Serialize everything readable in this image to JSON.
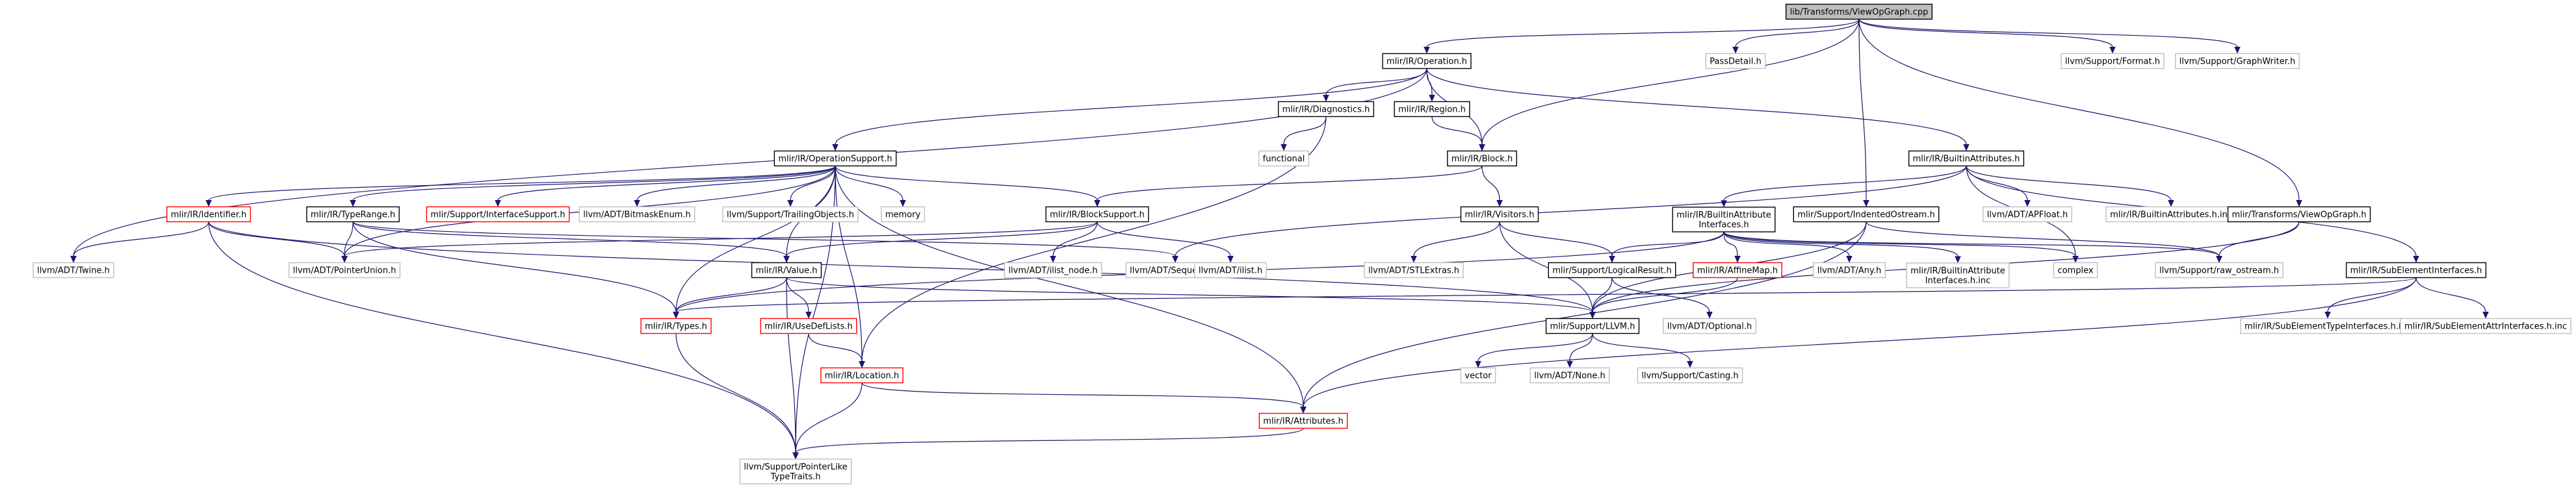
{
  "diagram": {
    "type": "include-dependency-graph",
    "root": "lib/Transforms/ViewOpGraph.cpp",
    "colors": {
      "root_fill": "#bfbfbf",
      "root_border": "#000000",
      "documented_border": "#000000",
      "undocumented_border": "#bfbfbf",
      "truncated_border": "#ff0000",
      "edge": "#191970",
      "node_fill": "#ffffff"
    },
    "nodes": [
      {
        "id": "root",
        "lines": [
          "lib/Transforms/ViewOpGraph.cpp"
        ],
        "kind": "root"
      },
      {
        "id": "operation",
        "lines": [
          "mlir/IR/Operation.h"
        ],
        "kind": "documented"
      },
      {
        "id": "passdetail",
        "lines": [
          "PassDetail.h"
        ],
        "kind": "undocumented"
      },
      {
        "id": "format",
        "lines": [
          "llvm/Support/Format.h"
        ],
        "kind": "undocumented"
      },
      {
        "id": "graphwriter",
        "lines": [
          "llvm/Support/GraphWriter.h"
        ],
        "kind": "undocumented"
      },
      {
        "id": "diagnostics",
        "lines": [
          "mlir/IR/Diagnostics.h"
        ],
        "kind": "documented"
      },
      {
        "id": "region",
        "lines": [
          "mlir/IR/Region.h"
        ],
        "kind": "documented"
      },
      {
        "id": "opsupport",
        "lines": [
          "mlir/IR/OperationSupport.h"
        ],
        "kind": "documented"
      },
      {
        "id": "builtinattrs",
        "lines": [
          "mlir/IR/BuiltinAttributes.h"
        ],
        "kind": "documented"
      },
      {
        "id": "functional",
        "lines": [
          "functional"
        ],
        "kind": "undocumented"
      },
      {
        "id": "block",
        "lines": [
          "mlir/IR/Block.h"
        ],
        "kind": "documented"
      },
      {
        "id": "identifier",
        "lines": [
          "mlir/IR/Identifier.h"
        ],
        "kind": "truncated"
      },
      {
        "id": "typerange",
        "lines": [
          "mlir/IR/TypeRange.h"
        ],
        "kind": "documented"
      },
      {
        "id": "ifacesupport",
        "lines": [
          "mlir/Support/InterfaceSupport.h"
        ],
        "kind": "truncated"
      },
      {
        "id": "bitmaskenum",
        "lines": [
          "llvm/ADT/BitmaskEnum.h"
        ],
        "kind": "undocumented"
      },
      {
        "id": "trailingobj",
        "lines": [
          "llvm/Support/TrailingObjects.h"
        ],
        "kind": "undocumented"
      },
      {
        "id": "memory",
        "lines": [
          "memory"
        ],
        "kind": "undocumented"
      },
      {
        "id": "blocksupport",
        "lines": [
          "mlir/IR/BlockSupport.h"
        ],
        "kind": "documented"
      },
      {
        "id": "visitors",
        "lines": [
          "mlir/IR/Visitors.h"
        ],
        "kind": "documented"
      },
      {
        "id": "builtinattrifaces",
        "lines": [
          "mlir/IR/BuiltinAttribute",
          "Interfaces.h"
        ],
        "kind": "documented"
      },
      {
        "id": "indentedos",
        "lines": [
          "mlir/Support/IndentedOstream.h"
        ],
        "kind": "documented"
      },
      {
        "id": "apfloat",
        "lines": [
          "llvm/ADT/APFloat.h"
        ],
        "kind": "undocumented"
      },
      {
        "id": "builtinattrsinc",
        "lines": [
          "mlir/IR/BuiltinAttributes.h.inc"
        ],
        "kind": "undocumented"
      },
      {
        "id": "viewopgraph",
        "lines": [
          "mlir/Transforms/ViewOpGraph.h"
        ],
        "kind": "documented"
      },
      {
        "id": "twine",
        "lines": [
          "llvm/ADT/Twine.h"
        ],
        "kind": "undocumented"
      },
      {
        "id": "pointerunion",
        "lines": [
          "llvm/ADT/PointerUnion.h"
        ],
        "kind": "undocumented"
      },
      {
        "id": "value",
        "lines": [
          "mlir/IR/Value.h"
        ],
        "kind": "documented"
      },
      {
        "id": "sequence",
        "lines": [
          "llvm/ADT/Sequence.h"
        ],
        "kind": "undocumented"
      },
      {
        "id": "listnode",
        "lines": [
          "llvm/ADT/ilist_node.h"
        ],
        "kind": "undocumented"
      },
      {
        "id": "ilist",
        "lines": [
          "llvm/ADT/ilist.h"
        ],
        "kind": "undocumented"
      },
      {
        "id": "stlextras",
        "lines": [
          "llvm/ADT/STLExtras.h"
        ],
        "kind": "undocumented"
      },
      {
        "id": "logicalresult",
        "lines": [
          "mlir/Support/LogicalResult.h"
        ],
        "kind": "documented"
      },
      {
        "id": "affinemap",
        "lines": [
          "mlir/IR/AffineMap.h"
        ],
        "kind": "truncated"
      },
      {
        "id": "any",
        "lines": [
          "llvm/ADT/Any.h"
        ],
        "kind": "undocumented"
      },
      {
        "id": "builtinattrifacesinc",
        "lines": [
          "mlir/IR/BuiltinAttribute",
          "Interfaces.h.inc"
        ],
        "kind": "undocumented"
      },
      {
        "id": "complex",
        "lines": [
          "complex"
        ],
        "kind": "undocumented"
      },
      {
        "id": "rawostream",
        "lines": [
          "llvm/Support/raw_ostream.h"
        ],
        "kind": "undocumented"
      },
      {
        "id": "subelemifaces",
        "lines": [
          "mlir/IR/SubElementInterfaces.h"
        ],
        "kind": "documented"
      },
      {
        "id": "types",
        "lines": [
          "mlir/IR/Types.h"
        ],
        "kind": "truncated"
      },
      {
        "id": "usedeflists",
        "lines": [
          "mlir/IR/UseDefLists.h"
        ],
        "kind": "truncated"
      },
      {
        "id": "llvmh",
        "lines": [
          "mlir/Support/LLVM.h"
        ],
        "kind": "documented"
      },
      {
        "id": "optional",
        "lines": [
          "llvm/ADT/Optional.h"
        ],
        "kind": "undocumented"
      },
      {
        "id": "subelemtypeinc",
        "lines": [
          "mlir/IR/SubElementTypeInterfaces.h.inc"
        ],
        "kind": "undocumented"
      },
      {
        "id": "subelemattrinc",
        "lines": [
          "mlir/IR/SubElementAttrInterfaces.h.inc"
        ],
        "kind": "undocumented"
      },
      {
        "id": "location",
        "lines": [
          "mlir/IR/Location.h"
        ],
        "kind": "truncated"
      },
      {
        "id": "vector",
        "lines": [
          "vector"
        ],
        "kind": "undocumented"
      },
      {
        "id": "none",
        "lines": [
          "llvm/ADT/None.h"
        ],
        "kind": "undocumented"
      },
      {
        "id": "casting",
        "lines": [
          "llvm/Support/Casting.h"
        ],
        "kind": "undocumented"
      },
      {
        "id": "attributes",
        "lines": [
          "mlir/IR/Attributes.h"
        ],
        "kind": "truncated"
      },
      {
        "id": "pointerlike",
        "lines": [
          "llvm/Support/PointerLike",
          "TypeTraits.h"
        ],
        "kind": "undocumented"
      }
    ],
    "edges": [
      [
        "root",
        "operation"
      ],
      [
        "root",
        "passdetail"
      ],
      [
        "root",
        "format"
      ],
      [
        "root",
        "graphwriter"
      ],
      [
        "root",
        "block"
      ],
      [
        "root",
        "indentedos"
      ],
      [
        "root",
        "viewopgraph"
      ],
      [
        "operation",
        "diagnostics"
      ],
      [
        "operation",
        "region"
      ],
      [
        "operation",
        "opsupport"
      ],
      [
        "operation",
        "builtinattrs"
      ],
      [
        "operation",
        "block"
      ],
      [
        "operation",
        "twine"
      ],
      [
        "diagnostics",
        "functional"
      ],
      [
        "diagnostics",
        "location"
      ],
      [
        "region",
        "block"
      ],
      [
        "block",
        "blocksupport"
      ],
      [
        "block",
        "visitors"
      ],
      [
        "opsupport",
        "identifier"
      ],
      [
        "opsupport",
        "typerange"
      ],
      [
        "opsupport",
        "ifacesupport"
      ],
      [
        "opsupport",
        "bitmaskenum"
      ],
      [
        "opsupport",
        "trailingobj"
      ],
      [
        "opsupport",
        "memory"
      ],
      [
        "opsupport",
        "blocksupport"
      ],
      [
        "opsupport",
        "value"
      ],
      [
        "opsupport",
        "pointerunion"
      ],
      [
        "opsupport",
        "types"
      ],
      [
        "opsupport",
        "location"
      ],
      [
        "opsupport",
        "attributes"
      ],
      [
        "opsupport",
        "pointerlike"
      ],
      [
        "builtinattrs",
        "builtinattrifaces"
      ],
      [
        "builtinattrs",
        "apfloat"
      ],
      [
        "builtinattrs",
        "builtinattrsinc"
      ],
      [
        "builtinattrs",
        "subelemifaces"
      ],
      [
        "builtinattrs",
        "sequence"
      ],
      [
        "builtinattrs",
        "complex"
      ],
      [
        "identifier",
        "twine"
      ],
      [
        "identifier",
        "pointerunion"
      ],
      [
        "identifier",
        "llvmh"
      ],
      [
        "identifier",
        "pointerlike"
      ],
      [
        "typerange",
        "types"
      ],
      [
        "typerange",
        "value"
      ],
      [
        "typerange",
        "sequence"
      ],
      [
        "typerange",
        "pointerunion"
      ],
      [
        "blocksupport",
        "value"
      ],
      [
        "blocksupport",
        "pointerunion"
      ],
      [
        "blocksupport",
        "listnode"
      ],
      [
        "blocksupport",
        "ilist"
      ],
      [
        "visitors",
        "stlextras"
      ],
      [
        "visitors",
        "logicalresult"
      ],
      [
        "visitors",
        "llvmh"
      ],
      [
        "builtinattrifaces",
        "affinemap"
      ],
      [
        "builtinattrifaces",
        "any"
      ],
      [
        "builtinattrifaces",
        "builtinattrifacesinc"
      ],
      [
        "builtinattrifaces",
        "complex"
      ],
      [
        "builtinattrifaces",
        "logicalresult"
      ],
      [
        "builtinattrifaces",
        "types"
      ],
      [
        "builtinattrifaces",
        "rawostream"
      ],
      [
        "indentedos",
        "rawostream"
      ],
      [
        "indentedos",
        "attributes"
      ],
      [
        "indentedos",
        "llvmh"
      ],
      [
        "viewopgraph",
        "rawostream"
      ],
      [
        "viewopgraph",
        "llvmh"
      ],
      [
        "value",
        "types"
      ],
      [
        "value",
        "usedeflists"
      ],
      [
        "value",
        "llvmh"
      ],
      [
        "value",
        "pointerlike"
      ],
      [
        "logicalresult",
        "llvmh"
      ],
      [
        "logicalresult",
        "optional"
      ],
      [
        "affinemap",
        "llvmh"
      ],
      [
        "subelemifaces",
        "subelemtypeinc"
      ],
      [
        "subelemifaces",
        "subelemattrinc"
      ],
      [
        "subelemifaces",
        "attributes"
      ],
      [
        "subelemifaces",
        "types"
      ],
      [
        "types",
        "pointerlike"
      ],
      [
        "usedeflists",
        "location"
      ],
      [
        "llvmh",
        "vector"
      ],
      [
        "llvmh",
        "none"
      ],
      [
        "llvmh",
        "casting"
      ],
      [
        "location",
        "attributes"
      ],
      [
        "location",
        "pointerlike"
      ],
      [
        "attributes",
        "pointerlike"
      ]
    ]
  }
}
